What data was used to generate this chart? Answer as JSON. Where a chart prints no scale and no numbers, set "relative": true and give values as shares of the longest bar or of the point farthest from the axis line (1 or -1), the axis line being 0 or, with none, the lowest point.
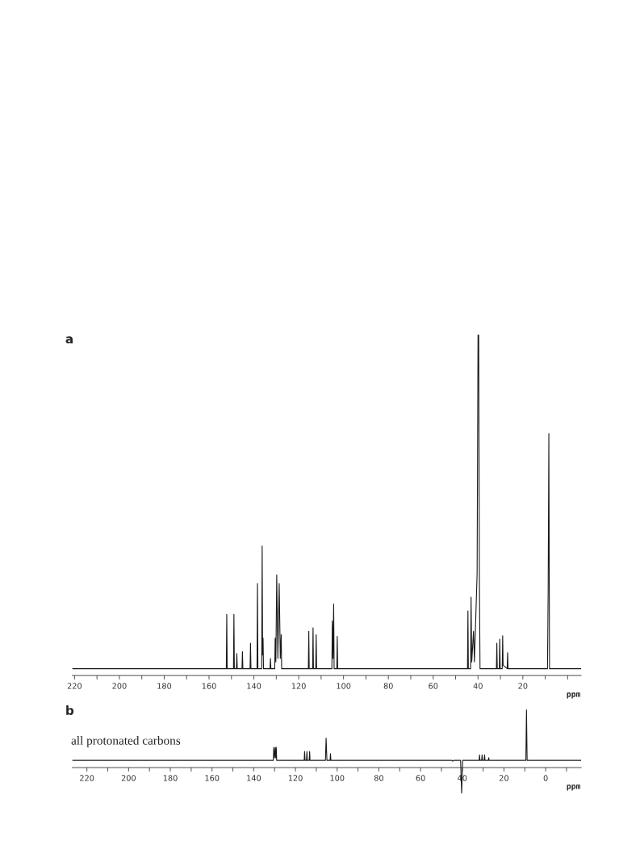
{
  "chart_data": [
    {
      "type": "line",
      "title": "a",
      "relative": true,
      "xlabel": "ppm",
      "xlim": [
        221,
        -6
      ],
      "xticks": [
        220,
        {
          "value": 210,
          "label": null
        },
        200,
        {
          "value": 190,
          "label": null
        },
        180,
        {
          "value": 170,
          "label": null
        },
        160,
        {
          "value": 150,
          "label": null
        },
        140,
        {
          "value": 130,
          "label": null
        },
        120,
        {
          "value": 110,
          "label": null
        },
        100,
        {
          "value": 90,
          "label": null
        },
        80,
        {
          "value": 70,
          "label": null
        },
        60,
        {
          "value": 50,
          "label": null
        },
        40,
        {
          "value": 30,
          "label": null
        },
        20,
        {
          "value": 10,
          "label": null
        },
        {
          "value": 0,
          "label": null
        }
      ],
      "grid": false,
      "legend": false,
      "x": [
        221,
        160,
        152.3,
        152.1,
        151.9,
        149.1,
        148.9,
        148.7,
        147.8,
        147.6,
        147.4,
        145.3,
        145.1,
        144.9,
        141.7,
        141.5,
        141.3,
        138.6,
        138.4,
        138.2,
        136.5,
        136.3,
        136.1,
        135.9,
        135.7,
        132.8,
        132.6,
        132.4,
        130.7,
        130.5,
        130.2,
        129.8,
        129.3,
        128.7,
        128.2,
        127.8,
        127.6,
        115.7,
        115.5,
        115.3,
        113.8,
        113.6,
        113.4,
        112.4,
        112.2,
        112.0,
        105.2,
        105.0,
        104.7,
        104.4,
        104.2,
        103.0,
        102.8,
        102.6,
        70,
        44.7,
        44.5,
        44.3,
        43.3,
        43.1,
        42.8,
        42.0,
        41.6,
        40.4,
        40.0,
        39.7,
        39.4,
        39.1,
        31.8,
        31.6,
        31.4,
        30.5,
        30.3,
        30.1,
        29.2,
        29.0,
        28.8,
        27.0,
        26.8,
        26.6,
        9.0,
        8.7,
        8.4,
        8.1,
        -6
      ],
      "series": [
        {
          "color": "#1a1a1a",
          "values": [
            0.02,
            0.02,
            0.02,
            0.18,
            0.02,
            0.02,
            0.18,
            0.02,
            0.02,
            0.065,
            0.02,
            0.02,
            0.07,
            0.02,
            0.02,
            0.095,
            0.02,
            0.02,
            0.27,
            0.02,
            0.02,
            0.38,
            0.06,
            0.11,
            0.02,
            0.02,
            0.05,
            0.02,
            0.02,
            0.11,
            0.04,
            0.295,
            0.05,
            0.27,
            0.05,
            0.12,
            0.02,
            0.02,
            0.13,
            0.02,
            0.02,
            0.14,
            0.02,
            0.02,
            0.12,
            0.02,
            0.02,
            0.16,
            0.05,
            0.21,
            0.02,
            0.02,
            0.115,
            0.02,
            0.02,
            0.02,
            0.19,
            0.02,
            0.02,
            0.23,
            0.04,
            0.13,
            0.04,
            0.3,
            1.0,
            1.0,
            0.3,
            0.02,
            0.02,
            0.095,
            0.02,
            0.02,
            0.107,
            0.02,
            0.02,
            0.117,
            0.03,
            0.02,
            0.067,
            0.02,
            0.02,
            0.25,
            0.71,
            0.02,
            0.02
          ]
        }
      ]
    },
    {
      "type": "line",
      "title": "b",
      "relative": true,
      "xlabel": "ppm",
      "xlim": [
        227,
        -17
      ],
      "xticks": [
        220,
        {
          "value": 210,
          "label": null
        },
        200,
        {
          "value": 190,
          "label": null
        },
        180,
        {
          "value": 170,
          "label": null
        },
        160,
        {
          "value": 150,
          "label": null
        },
        140,
        {
          "value": 130,
          "label": null
        },
        120,
        {
          "value": 110,
          "label": null
        },
        100,
        {
          "value": 90,
          "label": null
        },
        80,
        {
          "value": 70,
          "label": null
        },
        60,
        {
          "value": 50,
          "label": null
        },
        40,
        {
          "value": 30,
          "label": null
        },
        20,
        {
          "value": 10,
          "label": null
        },
        0,
        {
          "value": -10,
          "label": null
        }
      ],
      "grid": false,
      "legend": false,
      "annotations": [
        "all protonated carbons"
      ],
      "x": [
        227,
        131,
        130.6,
        130.4,
        130.05,
        129.7,
        129.45,
        129.2,
        129.0,
        115.8,
        115.6,
        115.4,
        114.7,
        114.5,
        114.3,
        113.4,
        113.2,
        113.0,
        105.6,
        105.3,
        104.9,
        103.4,
        103.2,
        103.0,
        45,
        44.6,
        44.2,
        40.8,
        40.3,
        39.8,
        31.9,
        31.7,
        31.5,
        30.7,
        30.5,
        30.3,
        29.5,
        29.3,
        29.1,
        27.5,
        27.3,
        27.1,
        9.5,
        9.2,
        8.9,
        -17
      ],
      "series": [
        {
          "color": "#1a1a1a",
          "values": [
            0.125,
            0.125,
            0.125,
            0.35,
            0.17,
            0.35,
            0.17,
            0.35,
            0.125,
            0.125,
            0.28,
            0.125,
            0.125,
            0.28,
            0.125,
            0.125,
            0.28,
            0.125,
            0.125,
            0.51,
            0.125,
            0.125,
            0.24,
            0.125,
            0.125,
            0.11,
            0.125,
            0.125,
            -0.44,
            0.125,
            0.125,
            0.22,
            0.125,
            0.125,
            0.22,
            0.125,
            0.125,
            0.22,
            0.125,
            0.125,
            0.17,
            0.125,
            0.125,
            1.0,
            0.125,
            0.125
          ]
        }
      ]
    }
  ]
}
